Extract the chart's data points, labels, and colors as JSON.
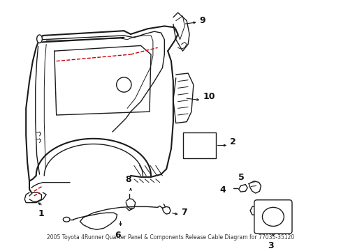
{
  "title": "2005 Toyota 4Runner Quarter Panel & Components Release Cable Diagram for 77035-35120",
  "background_color": "#ffffff",
  "line_color": "#1a1a1a",
  "label_color": "#111111",
  "red_dash_color": "#cc0000",
  "figsize": [
    4.89,
    3.6
  ],
  "dpi": 100
}
